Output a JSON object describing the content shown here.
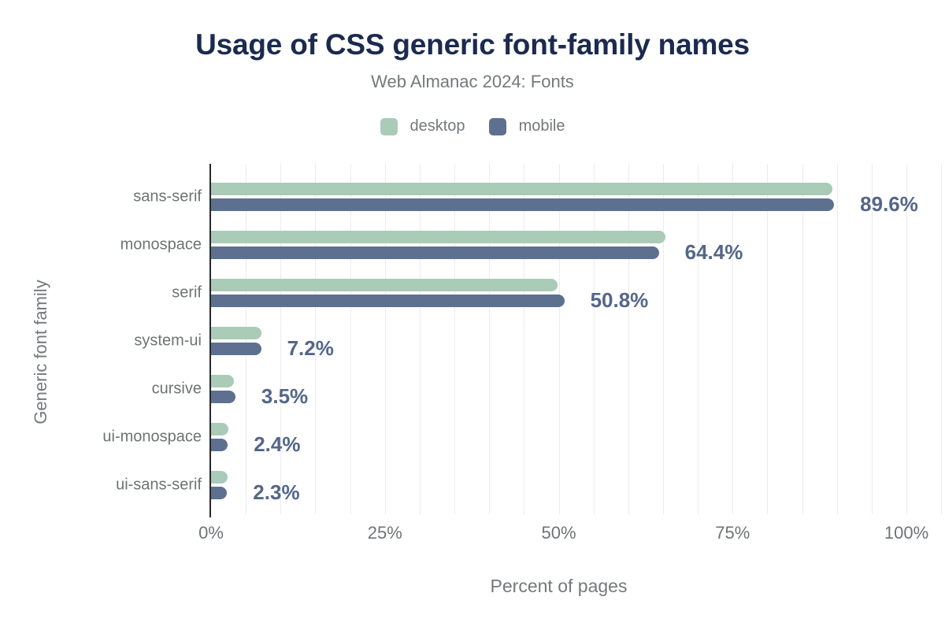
{
  "chart_data": {
    "type": "bar",
    "orientation": "horizontal",
    "title": "Usage of CSS generic font-family names",
    "subtitle": "Web Almanac 2024: Fonts",
    "xlabel": "Percent of pages",
    "ylabel": "Generic font family",
    "categories": [
      "sans-serif",
      "monospace",
      "serif",
      "system-ui",
      "cursive",
      "ui-monospace",
      "ui-sans-serif"
    ],
    "series": [
      {
        "name": "desktop",
        "color": "#a9cbb7",
        "values": [
          89.4,
          65.3,
          49.8,
          7.3,
          3.3,
          2.5,
          2.4
        ]
      },
      {
        "name": "mobile",
        "color": "#5e7090",
        "values": [
          89.6,
          64.4,
          50.8,
          7.2,
          3.5,
          2.4,
          2.3
        ]
      }
    ],
    "data_labels": {
      "series": "mobile",
      "values": [
        "89.6%",
        "64.4%",
        "50.8%",
        "7.2%",
        "3.5%",
        "2.4%",
        "2.3%"
      ]
    },
    "x_ticks": [
      {
        "value": 0,
        "label": "0%"
      },
      {
        "value": 25,
        "label": "25%"
      },
      {
        "value": 50,
        "label": "50%"
      },
      {
        "value": 75,
        "label": "75%"
      },
      {
        "value": 100,
        "label": "100%"
      }
    ],
    "xlim": [
      0,
      105
    ],
    "grid_step": 5,
    "grid": "vertical",
    "legend_position": "top",
    "colors": {
      "background": "#ffffff",
      "title": "#1b2a4e",
      "subtitle": "#75787c",
      "axis_text": "#6f7378",
      "category_text": "#6e7276",
      "data_label": "#546689",
      "gridline": "#ececec",
      "axis_line": "#26282e"
    }
  }
}
